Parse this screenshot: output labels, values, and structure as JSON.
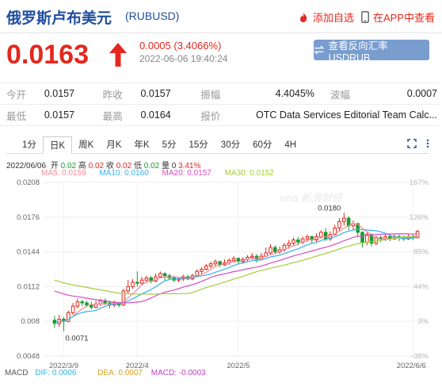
{
  "header": {
    "name": "俄罗斯卢布美元",
    "code": "(RUBUSD)",
    "add_fav": "添加自选",
    "app_view": "在APP中查看"
  },
  "quote": {
    "price": "0.0163",
    "change": "0.0005 (3.4066%)",
    "time": "2022-06-06 19:40:24",
    "reverse_btn": "查看反向汇率 USDRUB"
  },
  "stats": [
    {
      "label": "今开",
      "value": "0.0157"
    },
    {
      "label": "昨收",
      "value": "0.0157"
    },
    {
      "label": "振幅",
      "value": "4.4045%"
    },
    {
      "label": "波幅",
      "value": "0.0007"
    },
    {
      "label": "最低",
      "value": "0.0157"
    },
    {
      "label": "最高",
      "value": "0.0164"
    },
    {
      "label": "报价",
      "value": "OTC Data Services Editorial Team Calc..."
    }
  ],
  "tabs": [
    "1分",
    "日K",
    "周K",
    "月K",
    "年K",
    "5分",
    "15分",
    "30分",
    "60分",
    "4H"
  ],
  "active_tab": "日K",
  "bar_info": {
    "date": "2022/06/06",
    "open_label": "开",
    "open": "0.02",
    "high_label": "高",
    "high": "0.02",
    "close_label": "收",
    "close": "0.02",
    "low_label": "低",
    "low": "0.02",
    "vol_label": "量",
    "vol": "0",
    "pct": "3.41%"
  },
  "ma": {
    "ma5": "MA5: 0.0159",
    "ma10": "MA10: 0.0160",
    "ma20": "MA20: 0.0157",
    "ma30": "MA30: 0.0152"
  },
  "macd": {
    "label": "MACD",
    "dif": "DIF: 0.0006",
    "dea": "DEA: 0.0007",
    "macd": "MACD: -0.0003"
  },
  "colors": {
    "up": "#e4281d",
    "down": "#1a9b2f",
    "ma5": "#f28a9c",
    "ma10": "#34b3e6",
    "ma20": "#d94ac3",
    "ma30": "#a6cc3a",
    "brand": "#1f4e9e"
  },
  "chart_data": {
    "type": "candlestick",
    "y_ticks": [
      "0.0208",
      "0.0176",
      "0.0144",
      "0.0112",
      "0.008",
      "0.0048"
    ],
    "y_values": [
      0.0208,
      0.0176,
      0.0144,
      0.0112,
      0.008,
      0.0048
    ],
    "pct_ticks": [
      "167%",
      "126%",
      "85%",
      "44%",
      "3%",
      "-38%"
    ],
    "x_labels": [
      "2022/3/9",
      "2022/4",
      "2022/5",
      "2022/6/6"
    ],
    "ylim": [
      0.0048,
      0.0208
    ],
    "annotations": {
      "max": "0.0180",
      "min": "0.0071"
    },
    "watermark": "sina 新浪财经",
    "candles": [
      [
        0.0081,
        0.0078,
        0.0085,
        0.0074
      ],
      [
        0.0078,
        0.0082,
        0.0086,
        0.0075
      ],
      [
        0.0082,
        0.008,
        0.0084,
        0.0071
      ],
      [
        0.008,
        0.0088,
        0.009,
        0.0079
      ],
      [
        0.0088,
        0.0094,
        0.0097,
        0.0086
      ],
      [
        0.0094,
        0.0098,
        0.0101,
        0.0092
      ],
      [
        0.0098,
        0.0097,
        0.01,
        0.0094
      ],
      [
        0.0097,
        0.0095,
        0.0099,
        0.0093
      ],
      [
        0.0095,
        0.0093,
        0.0098,
        0.0091
      ],
      [
        0.0093,
        0.0096,
        0.0099,
        0.0092
      ],
      [
        0.0096,
        0.0099,
        0.0101,
        0.0094
      ],
      [
        0.0099,
        0.0097,
        0.0101,
        0.0095
      ],
      [
        0.0097,
        0.0095,
        0.0099,
        0.0092
      ],
      [
        0.0095,
        0.0097,
        0.0099,
        0.0093
      ],
      [
        0.0097,
        0.0095,
        0.0098,
        0.0093
      ],
      [
        0.0095,
        0.0108,
        0.011,
        0.0094
      ],
      [
        0.0108,
        0.0112,
        0.0118,
        0.0105
      ],
      [
        0.0112,
        0.0116,
        0.0119,
        0.011
      ],
      [
        0.0116,
        0.0115,
        0.0126,
        0.0112
      ],
      [
        0.0115,
        0.0118,
        0.0121,
        0.0113
      ],
      [
        0.0118,
        0.012,
        0.0122,
        0.0116
      ],
      [
        0.012,
        0.0117,
        0.0122,
        0.0115
      ],
      [
        0.0117,
        0.0121,
        0.0124,
        0.0116
      ],
      [
        0.0121,
        0.0124,
        0.0126,
        0.012
      ],
      [
        0.0124,
        0.0122,
        0.0125,
        0.0118
      ],
      [
        0.0122,
        0.012,
        0.0124,
        0.0118
      ],
      [
        0.012,
        0.0118,
        0.0122,
        0.0116
      ],
      [
        0.0118,
        0.0119,
        0.0121,
        0.0116
      ],
      [
        0.0119,
        0.0121,
        0.0123,
        0.0117
      ],
      [
        0.0121,
        0.0119,
        0.0123,
        0.0118
      ],
      [
        0.0119,
        0.0122,
        0.0124,
        0.0118
      ],
      [
        0.0122,
        0.0126,
        0.0128,
        0.0121
      ],
      [
        0.0126,
        0.0128,
        0.013,
        0.0124
      ],
      [
        0.0128,
        0.0131,
        0.0133,
        0.0127
      ],
      [
        0.0131,
        0.0133,
        0.0135,
        0.0129
      ],
      [
        0.0133,
        0.0135,
        0.0137,
        0.0131
      ],
      [
        0.0135,
        0.0132,
        0.0136,
        0.013
      ],
      [
        0.0132,
        0.0134,
        0.0137,
        0.0131
      ],
      [
        0.0134,
        0.0136,
        0.0138,
        0.0132
      ],
      [
        0.0136,
        0.0138,
        0.014,
        0.0134
      ],
      [
        0.0138,
        0.0135,
        0.0139,
        0.0133
      ],
      [
        0.0135,
        0.0137,
        0.0139,
        0.0133
      ],
      [
        0.0137,
        0.0139,
        0.0141,
        0.0135
      ],
      [
        0.0139,
        0.014,
        0.0143,
        0.0137
      ],
      [
        0.014,
        0.0137,
        0.0142,
        0.0134
      ],
      [
        0.0137,
        0.014,
        0.0143,
        0.0136
      ],
      [
        0.014,
        0.0143,
        0.0148,
        0.0139
      ],
      [
        0.0143,
        0.0148,
        0.0151,
        0.0141
      ],
      [
        0.0148,
        0.0144,
        0.015,
        0.0142
      ],
      [
        0.0144,
        0.0146,
        0.0149,
        0.0142
      ],
      [
        0.0146,
        0.015,
        0.0152,
        0.0144
      ],
      [
        0.015,
        0.0152,
        0.0155,
        0.0147
      ],
      [
        0.0152,
        0.0155,
        0.0157,
        0.015
      ],
      [
        0.0155,
        0.0153,
        0.0158,
        0.015
      ],
      [
        0.0153,
        0.0156,
        0.0158,
        0.0151
      ],
      [
        0.0156,
        0.0158,
        0.016,
        0.0153
      ],
      [
        0.0158,
        0.0155,
        0.0159,
        0.0152
      ],
      [
        0.0155,
        0.0158,
        0.0161,
        0.0153
      ],
      [
        0.0158,
        0.0162,
        0.0164,
        0.0156
      ],
      [
        0.0162,
        0.0156,
        0.0166,
        0.0154
      ],
      [
        0.0156,
        0.016,
        0.0163,
        0.0154
      ],
      [
        0.016,
        0.0166,
        0.0169,
        0.0159
      ],
      [
        0.0166,
        0.0172,
        0.0175,
        0.0163
      ],
      [
        0.0172,
        0.0175,
        0.018,
        0.0168
      ],
      [
        0.0175,
        0.0168,
        0.0177,
        0.0164
      ],
      [
        0.0168,
        0.017,
        0.0173,
        0.0164
      ],
      [
        0.017,
        0.0162,
        0.0171,
        0.0158
      ],
      [
        0.0162,
        0.0153,
        0.0163,
        0.0148
      ],
      [
        0.0153,
        0.016,
        0.0162,
        0.015
      ],
      [
        0.016,
        0.0152,
        0.0161,
        0.0149
      ],
      [
        0.0152,
        0.0157,
        0.0159,
        0.015
      ],
      [
        0.0157,
        0.0156,
        0.0159,
        0.0153
      ],
      [
        0.0156,
        0.0158,
        0.016,
        0.0154
      ],
      [
        0.0158,
        0.0156,
        0.016,
        0.0154
      ],
      [
        0.0156,
        0.0158,
        0.016,
        0.0155
      ],
      [
        0.0158,
        0.0157,
        0.016,
        0.0154
      ],
      [
        0.0157,
        0.0156,
        0.0159,
        0.0154
      ],
      [
        0.0156,
        0.0158,
        0.016,
        0.0155
      ],
      [
        0.0158,
        0.0157,
        0.016,
        0.0155
      ],
      [
        0.0157,
        0.0163,
        0.0164,
        0.0157
      ]
    ]
  }
}
